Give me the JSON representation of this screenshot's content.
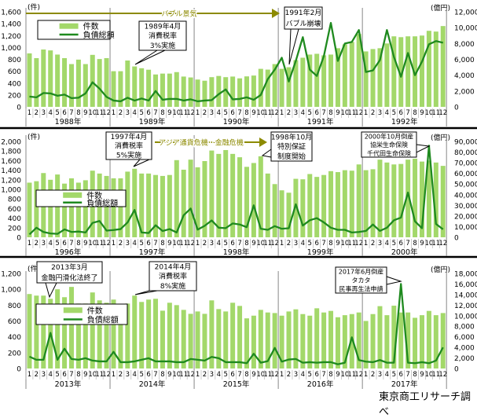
{
  "colors": {
    "bars": "#a3d86a",
    "line": "#1f8a1f",
    "event_arrow": "#8c8a00",
    "divider": "#888888"
  },
  "legend": {
    "count": "件数",
    "debt": "負債総額"
  },
  "units": {
    "left": "(件)",
    "right": "(億円)"
  },
  "source": "東京商工リサーチ調べ",
  "chart_data": [
    {
      "type": "bar+line",
      "years": [
        "1988年",
        "1989年",
        "1990年",
        "1991年",
        "1992年"
      ],
      "months": [
        "1",
        "2",
        "3",
        "4",
        "5",
        "6",
        "7",
        "8",
        "9",
        "10",
        "11",
        "12"
      ],
      "ylim_left": [
        0,
        1600
      ],
      "ystep_left": 200,
      "ylim_right": [
        0,
        12000
      ],
      "ystep_right": 2000,
      "series": [
        {
          "name": "件数",
          "axis": "left",
          "type": "bar",
          "values": [
            900,
            820,
            965,
            950,
            880,
            820,
            720,
            795,
            720,
            875,
            805,
            820,
            600,
            600,
            780,
            680,
            650,
            625,
            545,
            560,
            560,
            585,
            510,
            495,
            460,
            440,
            500,
            520,
            500,
            510,
            480,
            513,
            527,
            640,
            627,
            720,
            640,
            667,
            787,
            827,
            880,
            893,
            867,
            880,
            987,
            1053,
            1093,
            1227,
            933,
            973,
            987,
            1067,
            1187,
            1173,
            1187,
            1187,
            1200,
            1280,
            1267,
            1360
          ]
        },
        {
          "name": "負債総額",
          "axis": "right",
          "type": "line",
          "values": [
            1300,
            1200,
            1750,
            1700,
            1400,
            1550,
            1100,
            1150,
            1700,
            3100,
            2300,
            1250,
            800,
            700,
            1150,
            800,
            1050,
            800,
            2000,
            900,
            1000,
            1000,
            800,
            950,
            700,
            800,
            850,
            1600,
            2200,
            950,
            1000,
            1200,
            900,
            1500,
            3500,
            4700,
            6200,
            3200,
            5800,
            8800,
            4700,
            3900,
            6400,
            10600,
            5800,
            8000,
            8200,
            9700,
            4400,
            4600,
            5900,
            9700,
            6300,
            3800,
            6800,
            4000,
            5700,
            7900,
            8300,
            8100
          ]
        }
      ],
      "periods": [
        {
          "label": "バブル景気"
        }
      ],
      "annotations": [
        {
          "lines": [
            "1989年4月",
            "消費税率",
            "3%実施"
          ]
        },
        {
          "lines": [
            "1991年2月",
            "バブル崩壊"
          ]
        }
      ]
    },
    {
      "type": "bar+line",
      "years": [
        "1996年",
        "1997年",
        "1998年",
        "1999年",
        "2000年"
      ],
      "months": [
        "1",
        "2",
        "3",
        "4",
        "5",
        "6",
        "7",
        "8",
        "9",
        "10",
        "11",
        "12"
      ],
      "ylim_left": [
        0,
        2000
      ],
      "ystep_left": 200,
      "ylim_right": [
        0,
        90000
      ],
      "ystep_right": 10000,
      "series": [
        {
          "name": "件数",
          "axis": "left",
          "type": "bar",
          "values": [
            1140,
            1170,
            1340,
            1200,
            1310,
            1120,
            1230,
            1140,
            1190,
            1390,
            1330,
            1280,
            1230,
            1230,
            1370,
            1430,
            1330,
            1330,
            1300,
            1280,
            1300,
            1610,
            1410,
            1620,
            1460,
            1590,
            1810,
            1740,
            1820,
            1740,
            1670,
            1470,
            1550,
            1690,
            1330,
            1110,
            980,
            930,
            1220,
            1210,
            1320,
            1260,
            1300,
            1380,
            1360,
            1400,
            1390,
            1520,
            1400,
            1420,
            1620,
            1560,
            1520,
            1530,
            1620,
            1640,
            1580,
            1600,
            1560,
            1490
          ]
        },
        {
          "name": "負債総額",
          "axis": "right",
          "type": "line",
          "values": [
            2700,
            9000,
            5000,
            3600,
            3200,
            7400,
            5000,
            5400,
            4500,
            13500,
            15300,
            6300,
            6800,
            7700,
            14000,
            25700,
            4500,
            4000,
            11300,
            5900,
            7700,
            4500,
            20700,
            27000,
            7200,
            10800,
            15800,
            9000,
            8600,
            13000,
            12000,
            9500,
            30000,
            8000,
            7000,
            10500,
            8000,
            8500,
            31000,
            11000,
            16000,
            18000,
            14000,
            9000,
            7000,
            7000,
            4500,
            5000,
            6000,
            12000,
            6000,
            9000,
            16000,
            18500,
            42000,
            15000,
            8500,
            86000,
            12500,
            7500
          ]
        }
      ],
      "periods": [
        {
          "label": "アジア通貨危機・金融危機"
        }
      ],
      "annotations": [
        {
          "lines": [
            "1997年4月",
            "消費税率",
            "5%実施"
          ]
        },
        {
          "lines": [
            "1998年10月",
            "特別保証",
            "制度開始"
          ]
        },
        {
          "lines": [
            "2000年10月倒産",
            "協栄生命保険",
            "千代田生命保険"
          ]
        }
      ]
    },
    {
      "type": "bar+line",
      "years": [
        "2013年",
        "2014年",
        "2015年",
        "2016年",
        "2017年"
      ],
      "months": [
        "1",
        "2",
        "3",
        "4",
        "5",
        "6",
        "7",
        "8",
        "9",
        "10",
        "11",
        "12"
      ],
      "ylim_left": [
        0,
        1200
      ],
      "ystep_left": 200,
      "ylim_right": [
        0,
        18000
      ],
      "ystep_right": 2000,
      "series": [
        {
          "name": "件数",
          "axis": "left",
          "type": "bar",
          "values": [
            940,
            920,
            920,
            880,
            1000,
            900,
            1030,
            820,
            820,
            960,
            860,
            830,
            870,
            800,
            820,
            920,
            840,
            870,
            880,
            730,
            830,
            800,
            740,
            690,
            720,
            690,
            860,
            750,
            720,
            830,
            790,
            633,
            667,
            740,
            707,
            700,
            667,
            720,
            747,
            687,
            667,
            760,
            707,
            727,
            647,
            673,
            687,
            707,
            600,
            687,
            787,
            673,
            793,
            707,
            707,
            640,
            673,
            727,
            673,
            700
          ]
        },
        {
          "name": "負債総額",
          "axis": "right",
          "type": "line",
          "values": [
            2250,
            1650,
            1650,
            6750,
            1650,
            3750,
            1800,
            1650,
            1950,
            1500,
            1350,
            1350,
            3150,
            1200,
            1200,
            1350,
            1650,
            1950,
            1350,
            1350,
            1350,
            1200,
            1200,
            1800,
            1650,
            1500,
            2200,
            1950,
            1200,
            1200,
            1200,
            1000,
            2800,
            1100,
            1400,
            3900,
            1300,
            1700,
            1800,
            1100,
            1200,
            1100,
            1200,
            1200,
            800,
            1100,
            5900,
            1600,
            1300,
            1200,
            1600,
            1100,
            1100,
            16000,
            1100,
            1000,
            1200,
            1000,
            1500,
            4000
          ]
        }
      ],
      "periods": [],
      "annotations": [
        {
          "lines": [
            "2013年3月",
            "金融円滑化法終了"
          ]
        },
        {
          "lines": [
            "2014年4月",
            "消費税率",
            "8%実施"
          ]
        },
        {
          "lines": [
            "2017年6月倒産",
            "タカタ",
            "民事再生法申請"
          ]
        }
      ]
    }
  ]
}
